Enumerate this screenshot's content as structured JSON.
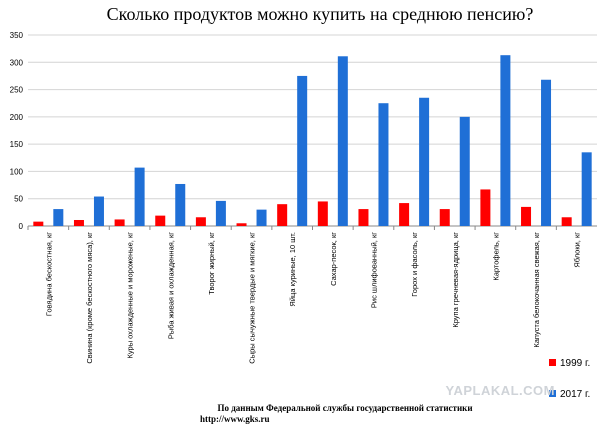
{
  "chart_data": {
    "type": "bar",
    "title": "Сколько продуктов можно купить на среднюю пенсию?",
    "categories": [
      "Говядина бескостная, кг",
      "Свинина (кроме бескостного мяса), кг",
      "Куры охлажденные и мороженые, кг",
      "Рыба живая и охлажденная, кг",
      "Творог жирный, кг",
      "Сыры сычужные твердые и мягкие, кг",
      "Яйца куриные, 10 шт.",
      "Сахар-песок, кг",
      "Рис шлифованный, кг",
      "Горох и фасоль, кг",
      "Крупа гречневая-ядрица, кг",
      "Картофель, кг",
      "Капуста белокочанная свежая, кг",
      "Яблоки, кг"
    ],
    "series": [
      {
        "name": "1999 г.",
        "color": "#ff0000",
        "values": [
          8,
          11,
          12,
          19,
          16,
          5,
          40,
          45,
          31,
          42,
          31,
          67,
          35,
          16
        ]
      },
      {
        "name": "2017 г.",
        "color": "#1f6fd6",
        "values": [
          31,
          54,
          107,
          77,
          46,
          30,
          275,
          311,
          225,
          235,
          200,
          313,
          268,
          135
        ]
      }
    ],
    "ylim": [
      0,
      350
    ],
    "yticks": [
      0,
      50,
      100,
      150,
      200,
      250,
      300,
      350
    ],
    "grid": true,
    "legend": "right"
  },
  "source": {
    "line1": "По данным Федеральной службы государственной статистики",
    "line2": "http://www.gks.ru"
  },
  "watermark": "YAPLAKAL.COM"
}
